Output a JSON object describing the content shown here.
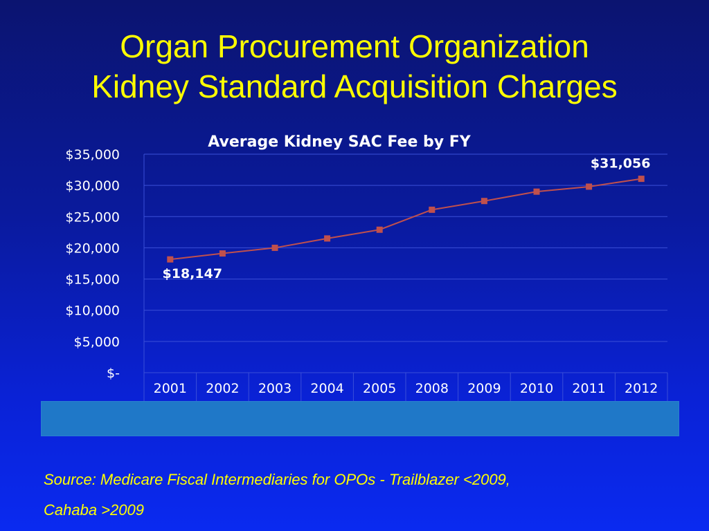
{
  "slide": {
    "title_line1": "Organ Procurement Organization",
    "title_line2": "Kidney Standard Acquisition Charges",
    "source_line1": "Source:  Medicare Fiscal Intermediaries for OPOs -  Trailblazer <2009,",
    "source_line2": "Cahaba >2009"
  },
  "colors": {
    "title": "#ffff00",
    "axis_text": "#ffffff",
    "chart_title": "#ffffff",
    "series_line": "#c0504d",
    "band": "#1f78c8"
  },
  "chart_data": {
    "type": "line",
    "title": "Average Kidney SAC Fee by FY",
    "xlabel": "",
    "ylabel": "",
    "categories": [
      "2001",
      "2002",
      "2003",
      "2004",
      "2005",
      "2008",
      "2009",
      "2010",
      "2011",
      "2012"
    ],
    "series": [
      {
        "values": [
          18147,
          19100,
          20000,
          21500,
          22900,
          26100,
          27500,
          29000,
          29800,
          31056
        ]
      }
    ],
    "ylim": [
      0,
      35000
    ],
    "yticks": [
      0,
      5000,
      10000,
      15000,
      20000,
      25000,
      30000,
      35000
    ],
    "ytick_labels": [
      "$-",
      "$5,000",
      "$10,000",
      "$15,000",
      "$20,000",
      "$25,000",
      "$30,000",
      "$35,000"
    ],
    "data_labels": [
      {
        "index": 0,
        "text": "$18,147"
      },
      {
        "index": 9,
        "text": "$31,056"
      }
    ],
    "grid": true,
    "legend": "none"
  }
}
